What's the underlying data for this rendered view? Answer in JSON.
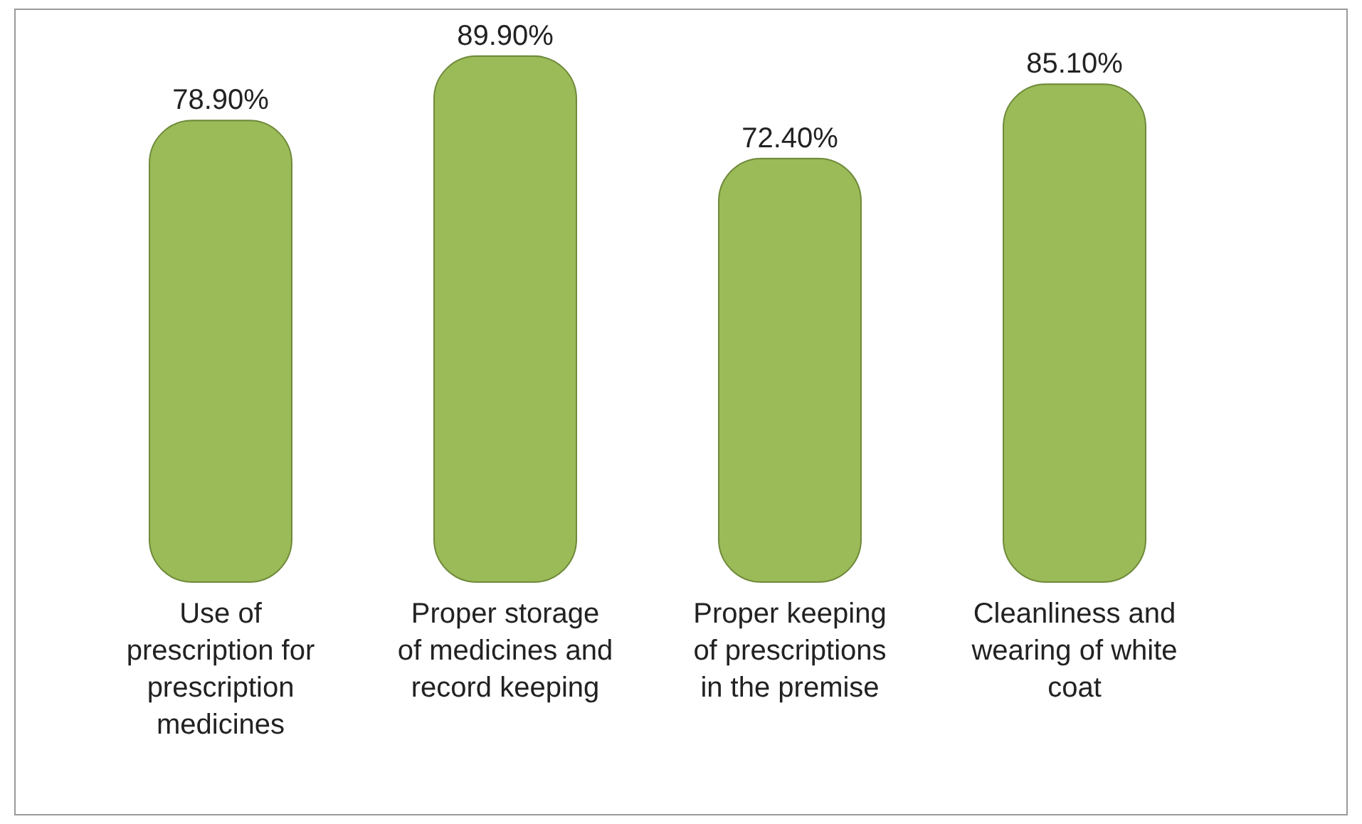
{
  "chart_data": {
    "type": "bar",
    "categories": [
      "Use of prescription for prescription medicines",
      "Proper storage of medicines and record keeping",
      "Proper keeping of prescriptions in the premise",
      "Cleanliness and wearing of white coat"
    ],
    "values": [
      78.9,
      89.9,
      72.4,
      85.1
    ],
    "value_labels": [
      "78.90%",
      "89.90%",
      "72.40%",
      "85.10%"
    ],
    "color": "#9bbb59",
    "tick_labels": "x"
  }
}
